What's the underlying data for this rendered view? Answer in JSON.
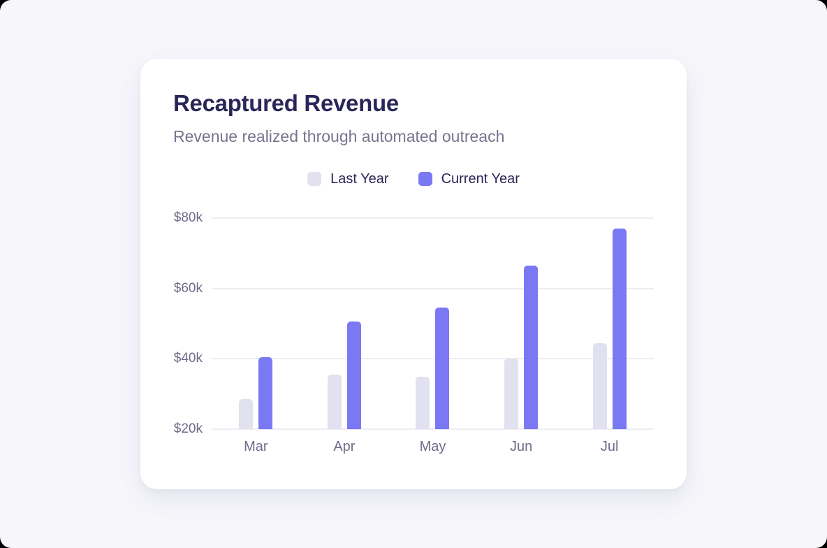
{
  "window": {
    "background": "#F6F6FB",
    "card_background": "#FFFFFF"
  },
  "chart_data": {
    "type": "bar",
    "title": "Recaptured Revenue",
    "subtitle": "Revenue realized through automated outreach",
    "categories": [
      "Mar",
      "Apr",
      "May",
      "Jun",
      "Jul"
    ],
    "series": [
      {
        "name": "Last Year",
        "color": "#E2E1EF",
        "values": [
          28.5,
          35.5,
          35,
          40,
          44.5
        ]
      },
      {
        "name": "Current Year",
        "color": "#7A78F2",
        "values": [
          40.5,
          50.5,
          54.5,
          66.5,
          77
        ]
      }
    ],
    "unit": "$k",
    "y_ticks": [
      {
        "label": "$80k",
        "value": 80
      },
      {
        "label": "$60k",
        "value": 60
      },
      {
        "label": "$40k",
        "value": 40
      },
      {
        "label": "$20k",
        "value": 20
      }
    ],
    "ylim": [
      20,
      80
    ],
    "grid": "horizontal",
    "legend_position": "top-center",
    "colors": {
      "title_text": "#2A2657",
      "subtitle_text": "#76748E",
      "axis_text": "#6E6C8A",
      "gridline": "#EDEDF3"
    }
  }
}
